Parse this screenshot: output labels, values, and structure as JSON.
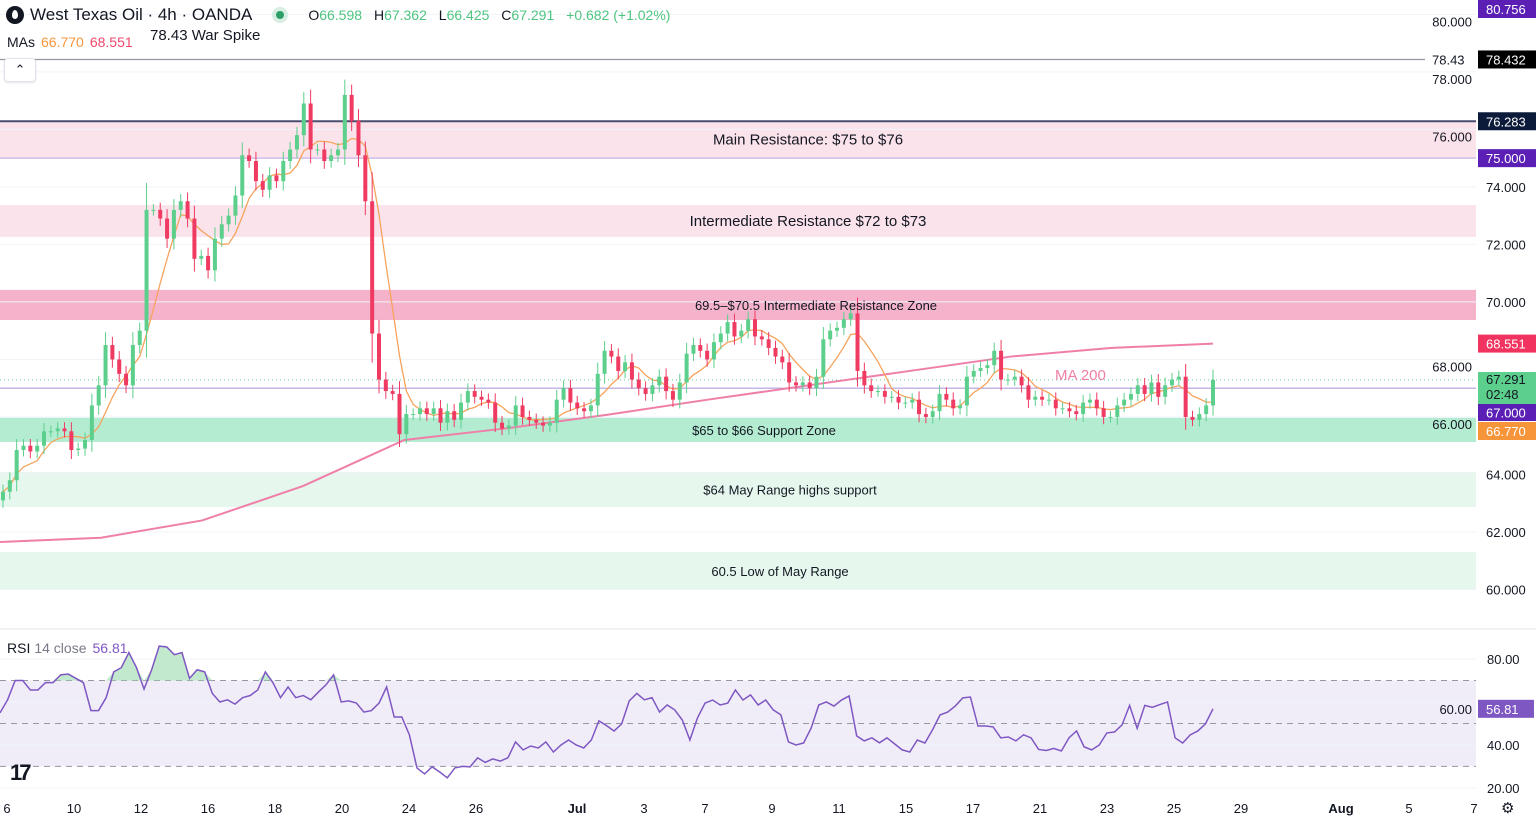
{
  "header": {
    "title": "West Texas Oil · 4h · OANDA",
    "ohlc": {
      "o_label": "O",
      "o": "66.598",
      "h_label": "H",
      "h": "67.362",
      "l_label": "L",
      "l": "66.425",
      "c_label": "C",
      "c": "67.291",
      "change": "+0.682 (+1.02%)"
    },
    "mas_label": "MAs",
    "ma_short": "66.770",
    "ma_long": "68.551",
    "spike_note": "78.43 War Spike",
    "collapse_icon": "chevron-up-icon"
  },
  "colors": {
    "up": "#5ccf8c",
    "down": "#ef3a62",
    "ma_short": "#f7a35c",
    "ma_long": "#ef7fa8",
    "rsi": "#7e57c2",
    "resistance_light": "#fbe3ec",
    "resistance_mid": "#f4b3cb",
    "support_mid": "#b4ecd2",
    "support_light": "#e6f7ee"
  },
  "chart_data": {
    "type": "candlestick",
    "symbol": "West Texas Oil",
    "interval": "4h",
    "source": "OANDA",
    "ylim": [
      58.66,
      80.5
    ],
    "y_ticks": [
      "80.000",
      "78.000",
      "76.000",
      "74.000",
      "72.000",
      "70.000",
      "68.000",
      "66.000",
      "64.000",
      "62.000",
      "60.000"
    ],
    "x_ticks": [
      "6",
      "10",
      "12",
      "16",
      "18",
      "20",
      "24",
      "26",
      "Jul",
      "3",
      "7",
      "9",
      "11",
      "15",
      "17",
      "21",
      "23",
      "25",
      "29",
      "Aug",
      "5",
      "7"
    ],
    "first_open": 63.1,
    "closes": [
      63.4,
      63.8,
      64.85,
      65.0,
      64.8,
      65.0,
      65.5,
      65.5,
      65.6,
      65.5,
      64.85,
      64.9,
      65.2,
      66.4,
      67.1,
      68.5,
      68.0,
      67.5,
      67.1,
      68.5,
      69.0,
      73.2,
      73.2,
      72.9,
      72.2,
      73.2,
      73.5,
      72.9,
      71.5,
      71.6,
      71.1,
      72.2,
      72.7,
      73.0,
      73.7,
      75.1,
      74.9,
      74.2,
      73.9,
      74.4,
      74.2,
      74.9,
      75.3,
      75.8,
      76.9,
      75.3,
      75.3,
      74.9,
      75.1,
      75.3,
      77.2,
      76.3,
      75.1,
      73.5,
      68.9,
      67.3,
      66.9,
      66.8,
      65.4,
      66.1,
      66.1,
      66.3,
      66.1,
      66.3,
      65.8,
      66.2,
      65.9,
      66.5,
      66.9,
      66.7,
      66.6,
      66.5,
      65.8,
      65.6,
      65.7,
      66.4,
      66.0,
      65.9,
      65.8,
      65.7,
      65.8,
      66.6,
      67.0,
      66.5,
      66.3,
      66.2,
      66.4,
      67.5,
      68.3,
      68.1,
      67.6,
      67.9,
      67.3,
      67.0,
      66.8,
      67.1,
      67.4,
      66.9,
      66.6,
      67.2,
      68.2,
      68.5,
      68.3,
      68.0,
      68.6,
      68.9,
      69.3,
      68.8,
      69.0,
      69.4,
      68.8,
      68.7,
      68.4,
      68.1,
      67.9,
      67.2,
      67.1,
      67.2,
      67.0,
      67.4,
      68.7,
      69.0,
      69.1,
      69.4,
      69.6,
      67.6,
      67.1,
      66.9,
      66.9,
      66.7,
      66.7,
      66.5,
      66.5,
      66.6,
      66.1,
      66.0,
      66.2,
      66.8,
      66.6,
      66.3,
      66.4,
      67.4,
      67.6,
      67.7,
      67.8,
      68.3,
      67.3,
      67.3,
      67.4,
      67.1,
      66.6,
      66.7,
      66.6,
      66.6,
      66.3,
      66.3,
      66.2,
      66.1,
      66.5,
      66.6,
      66.3,
      66.0,
      66.0,
      66.4,
      66.6,
      66.8,
      67.1,
      66.8,
      67.2,
      66.7,
      67.1,
      67.3,
      67.4,
      66.0,
      65.9,
      66.1,
      66.4,
      67.291
    ],
    "ma200": [
      61.65,
      61.8,
      62.4,
      63.6,
      65.2,
      65.6,
      66.07,
      66.6,
      67.1,
      67.6,
      68.1,
      68.4,
      68.551
    ],
    "ma200_label": "MA 200",
    "zones": [
      {
        "label": "Main Resistance: $75 to $76",
        "from": 75.0,
        "to": 76.28,
        "color": "resistance_light"
      },
      {
        "label": "Intermediate Resistance $72 to $73",
        "from": 72.26,
        "to": 73.37,
        "color": "resistance_light"
      },
      {
        "label": "69.5–$70.5 Intermediate Resistance Zone",
        "from": 69.37,
        "to": 70.42,
        "color": "resistance_mid"
      },
      {
        "label": "$65 to $66 Support Zone",
        "from": 65.13,
        "to": 65.97,
        "color": "support_mid"
      },
      {
        "label": "$64 May Range highs support",
        "from": 62.87,
        "to": 64.09,
        "color": "support_light"
      },
      {
        "label": "60.5 Low of May Range",
        "from": 60.0,
        "to": 61.3,
        "color": "support_light"
      }
    ],
    "hlines": [
      {
        "value": 78.43,
        "label": "78.43",
        "color": "#9598a1"
      },
      {
        "value": 76.283,
        "color": "#4a4e6e"
      },
      {
        "value": 75.0,
        "color": "#c9b3e8"
      },
      {
        "value": 67.0,
        "color": "#b39ddb"
      }
    ],
    "last_price_line": 67.291,
    "price_badges": [
      {
        "text": "80.756",
        "value": 80.756,
        "bg": "#5b1fb5"
      },
      {
        "text": "78.432",
        "value": 78.432,
        "bg": "#000000"
      },
      {
        "text": "76.283",
        "value": 76.283,
        "bg": "#0d1b3a"
      },
      {
        "text": "75.000",
        "value": 75.0,
        "bg": "#5b1fb5"
      },
      {
        "text": "68.551",
        "value": 68.551,
        "bg": "#f0345f"
      },
      {
        "text": "67.291",
        "sub": "02:48",
        "value": 67.291,
        "bg": "#5ccf8c"
      },
      {
        "text": "67.000",
        "value": 67.0,
        "bg": "#5b1fb5"
      },
      {
        "text": "66.770",
        "value": 66.77,
        "bg": "#f7953b"
      }
    ],
    "rsi": {
      "label": "RSI",
      "params": "14 close",
      "value": "56.81",
      "ylim": [
        16.7,
        93.5
      ],
      "y_ticks": [
        "80.00",
        "60.00",
        "40.00",
        "20.00"
      ],
      "bands": [
        70,
        50,
        30
      ],
      "values": [
        54.9,
        61,
        70,
        70,
        65.6,
        65.6,
        69,
        69,
        72.6,
        73,
        71,
        69,
        56,
        56,
        62,
        74,
        76,
        83,
        76,
        66,
        75,
        86,
        85.6,
        82,
        83,
        71,
        75,
        74,
        64,
        60,
        61,
        59,
        62,
        63,
        65.6,
        74,
        69,
        62,
        67,
        62,
        63,
        61,
        64.6,
        68,
        72.6,
        60,
        60.5,
        59.5,
        55.3,
        56,
        59.5,
        67,
        53,
        53,
        44.7,
        29.3,
        26.5,
        29.8,
        27.4,
        24.7,
        29.3,
        30,
        29.8,
        34,
        31.9,
        33.5,
        32.5,
        34,
        41.4,
        37.7,
        39.5,
        38.6,
        41.4,
        36.7,
        40,
        42.3,
        40,
        38.6,
        42.3,
        51.2,
        49,
        46.5,
        49.8,
        60.5,
        64,
        61,
        62,
        55.3,
        58.6,
        56.3,
        51.6,
        42.3,
        52.6,
        59.5,
        60.9,
        58.6,
        59.5,
        65.6,
        60.9,
        63.3,
        58.6,
        60.9,
        56.3,
        54,
        41.4,
        40,
        40.9,
        47.9,
        58.6,
        60,
        58.1,
        60.9,
        62.8,
        44.2,
        41.9,
        43.3,
        41,
        43.3,
        40.5,
        37.7,
        36.7,
        42.3,
        40.9,
        47,
        54,
        55.3,
        58.1,
        61.9,
        62.3,
        48.8,
        48.8,
        48.4,
        43.3,
        43.7,
        41.9,
        44.7,
        43.3,
        37.9,
        37.4,
        38.4,
        37.2,
        43.3,
        46.5,
        39.1,
        37.7,
        40,
        45.6,
        46,
        49.3,
        58.4,
        47.7,
        58.4,
        57.5,
        58.8,
        60,
        43.3,
        40.9,
        44.7,
        46.5,
        49.8,
        56.81
      ]
    }
  }
}
